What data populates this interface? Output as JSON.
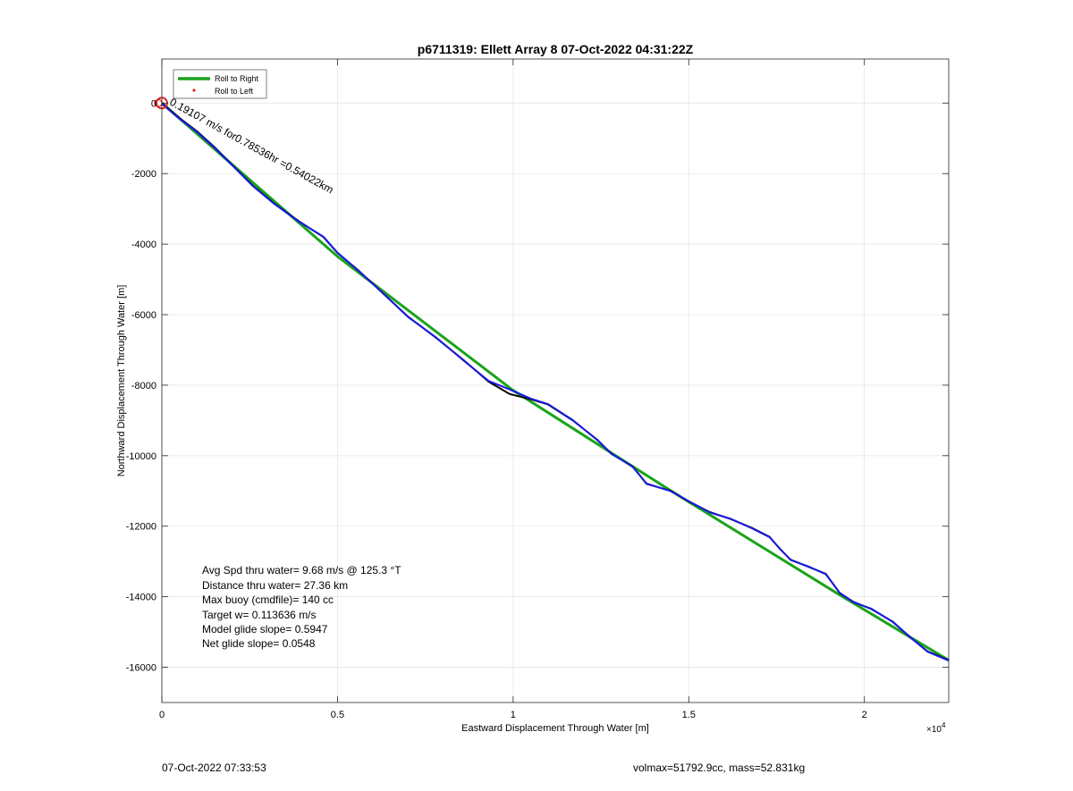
{
  "chart_data": {
    "type": "line",
    "title": "p6711319: Ellett Array 8 07-Oct-2022 04:31:22Z",
    "xlabel": "Eastward Displacement Through Water [m]",
    "ylabel": "Northward Displacement Through Water [m]",
    "x_exponent_label": "×10^4",
    "xlim": [
      0,
      22400
    ],
    "ylim": [
      -17000,
      1250
    ],
    "grid": true,
    "x_ticks": [
      0,
      5000,
      10000,
      15000,
      20000
    ],
    "x_tick_labels": [
      "0",
      "0.5",
      "1",
      "1.5",
      "2"
    ],
    "y_ticks": [
      0,
      -2000,
      -4000,
      -6000,
      -8000,
      -10000,
      -12000,
      -14000,
      -16000
    ],
    "y_tick_labels": [
      "0",
      "-2000",
      "-4000",
      "-6000",
      "-8000",
      "-10000",
      "-12000",
      "-14000",
      "-16000"
    ],
    "legend": {
      "placement": "top-left",
      "entries": [
        {
          "label": "Roll to Right",
          "color": "#1aa31a",
          "style": "line"
        },
        {
          "label": "Roll to Left",
          "color": "#e02020",
          "style": "dot"
        }
      ]
    },
    "series": [
      {
        "color": "#1aa31a",
        "x": [
          0,
          5000,
          10000,
          14500,
          19300,
          22400
        ],
        "y": [
          0,
          -4350,
          -8150,
          -11000,
          -13950,
          -15800
        ]
      },
      {
        "color": "#000000",
        "x": [
          0,
          500,
          1000,
          1500,
          2000,
          2600,
          3200,
          3900,
          4600,
          5000,
          5600,
          6300,
          7000,
          7800,
          8600,
          9300,
          9900,
          10500,
          11000,
          11700,
          12400,
          12800,
          13400,
          13800,
          14500,
          15000,
          15600,
          16200,
          16800,
          17300,
          17600,
          17900,
          18400,
          18900,
          19300,
          19700,
          20200,
          20800,
          21300,
          21800,
          22400
        ],
        "y": [
          0,
          -420,
          -800,
          -1250,
          -1750,
          -2350,
          -2850,
          -3350,
          -3800,
          -4250,
          -4750,
          -5400,
          -6050,
          -6650,
          -7300,
          -7900,
          -8250,
          -8400,
          -8550,
          -9000,
          -9550,
          -9950,
          -10300,
          -10800,
          -11000,
          -11300,
          -11600,
          -11800,
          -12050,
          -12300,
          -12650,
          -12950,
          -13150,
          -13350,
          -13900,
          -14150,
          -14350,
          -14700,
          -15150,
          -15550,
          -15800
        ]
      },
      {
        "color": "#1a1ae6",
        "x": [
          0,
          500,
          1000,
          1500,
          2000,
          2600,
          3200,
          3900,
          4600,
          5000,
          5600,
          6300,
          7000,
          7800,
          8600,
          9300,
          9900,
          10500,
          11000,
          11700,
          12400,
          12800,
          13400,
          13800,
          14500,
          15000,
          15600,
          16200,
          16800,
          17300,
          17600,
          17900,
          18400,
          18900,
          19300,
          19700,
          20200,
          20800,
          21300,
          21800,
          22400
        ],
        "y": [
          -20,
          -440,
          -820,
          -1270,
          -1760,
          -2360,
          -2860,
          -3360,
          -3790,
          -4240,
          -4760,
          -5390,
          -6060,
          -6640,
          -7310,
          -7880,
          -8120,
          -8380,
          -8540,
          -8990,
          -9560,
          -9940,
          -10310,
          -10790,
          -11010,
          -11290,
          -11610,
          -11790,
          -12060,
          -12310,
          -12640,
          -12960,
          -13140,
          -13360,
          -13890,
          -14160,
          -14340,
          -14710,
          -15140,
          -15560,
          -15810
        ]
      }
    ],
    "start_marker": {
      "x": 0,
      "y": 0,
      "color": "#e02020"
    },
    "annotation": {
      "text": "0.19107 m/s for0.78536hr =0.54022km",
      "x": 200,
      "y": -30,
      "rotation_deg": 29
    },
    "stats": [
      "Avg Spd thru water=  9.68 m/s @ 125.3 °T",
      "Distance thru water= 27.36 km",
      "Max buoy (cmdfile)= 140 cc",
      "Target w= 0.113636 m/s",
      "Model glide slope= 0.5947",
      "Net glide slope= 0.0548"
    ]
  },
  "footer": {
    "timestamp": "07-Oct-2022 07:33:53",
    "info": "volmax=51792.9cc, mass=52.831kg"
  }
}
